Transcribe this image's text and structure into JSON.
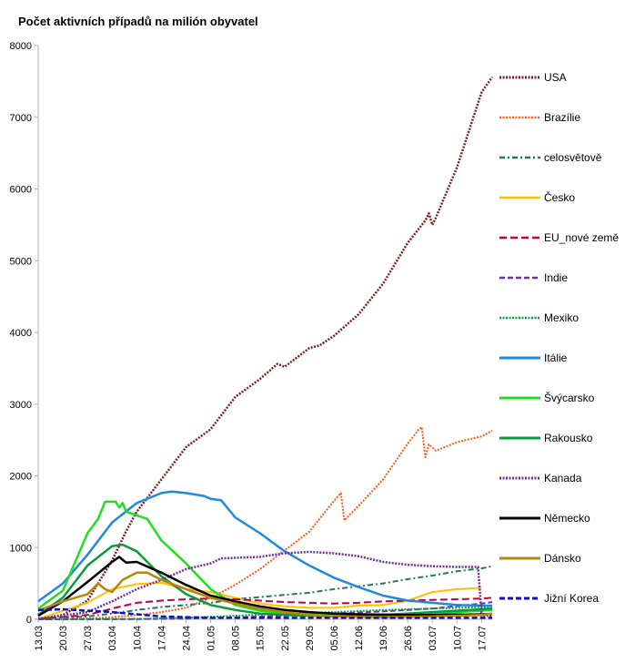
{
  "chart_data": {
    "type": "line",
    "title": "Počet aktivních případů na milión obyvatel",
    "xlabel": "",
    "ylabel": "",
    "ylim": [
      0,
      8000
    ],
    "yticks": [
      0,
      1000,
      2000,
      3000,
      4000,
      5000,
      6000,
      7000,
      8000
    ],
    "x_tick_labels": [
      "13.03",
      "20.03",
      "27.03",
      "03.04",
      "10.04",
      "17.04",
      "24.04",
      "01.05",
      "08.05",
      "15.05",
      "22.05",
      "29.05",
      "05.06",
      "12.06",
      "19.06",
      "26.06",
      "03.07",
      "10.07",
      "17.07"
    ],
    "x_tick_days": [
      0,
      7,
      14,
      21,
      28,
      35,
      42,
      49,
      56,
      63,
      70,
      77,
      84,
      91,
      98,
      105,
      112,
      119,
      126
    ],
    "x_range_days": [
      0,
      129
    ],
    "grid": false,
    "legend_position": "right",
    "series": [
      {
        "name": "USA",
        "color": "#7b1f1f",
        "dash": "2,1.5",
        "width": 2.5,
        "points": [
          [
            0,
            5
          ],
          [
            7,
            60
          ],
          [
            14,
            260
          ],
          [
            21,
            820
          ],
          [
            25,
            1230
          ],
          [
            28,
            1500
          ],
          [
            35,
            1950
          ],
          [
            42,
            2400
          ],
          [
            49,
            2650
          ],
          [
            56,
            3100
          ],
          [
            63,
            3350
          ],
          [
            68,
            3560
          ],
          [
            70,
            3520
          ],
          [
            77,
            3780
          ],
          [
            80,
            3820
          ],
          [
            84,
            3950
          ],
          [
            91,
            4250
          ],
          [
            98,
            4680
          ],
          [
            105,
            5250
          ],
          [
            110,
            5560
          ],
          [
            111,
            5660
          ],
          [
            112,
            5500
          ],
          [
            113,
            5600
          ],
          [
            119,
            6300
          ],
          [
            126,
            7350
          ],
          [
            129,
            7560
          ]
        ]
      },
      {
        "name": "Brazílie",
        "color": "#ff5a1a",
        "dash": "2,1.5",
        "width": 2,
        "points": [
          [
            0,
            0
          ],
          [
            14,
            10
          ],
          [
            21,
            30
          ],
          [
            28,
            60
          ],
          [
            35,
            100
          ],
          [
            42,
            160
          ],
          [
            49,
            300
          ],
          [
            56,
            480
          ],
          [
            63,
            700
          ],
          [
            70,
            960
          ],
          [
            77,
            1220
          ],
          [
            84,
            1650
          ],
          [
            86,
            1760
          ],
          [
            87,
            1380
          ],
          [
            91,
            1580
          ],
          [
            98,
            1950
          ],
          [
            105,
            2450
          ],
          [
            108,
            2640
          ],
          [
            109,
            2680
          ],
          [
            110,
            2260
          ],
          [
            111,
            2440
          ],
          [
            113,
            2350
          ],
          [
            119,
            2470
          ],
          [
            126,
            2550
          ],
          [
            129,
            2630
          ]
        ]
      },
      {
        "name": "celosvětově",
        "color": "#1f7a5a",
        "dash": "6,3,2,3",
        "width": 2,
        "points": [
          [
            0,
            15
          ],
          [
            14,
            40
          ],
          [
            21,
            80
          ],
          [
            28,
            130
          ],
          [
            35,
            170
          ],
          [
            42,
            200
          ],
          [
            49,
            230
          ],
          [
            56,
            280
          ],
          [
            63,
            310
          ],
          [
            70,
            340
          ],
          [
            77,
            370
          ],
          [
            84,
            420
          ],
          [
            91,
            460
          ],
          [
            98,
            500
          ],
          [
            105,
            560
          ],
          [
            112,
            610
          ],
          [
            119,
            670
          ],
          [
            126,
            710
          ],
          [
            129,
            740
          ]
        ]
      },
      {
        "name": "Česko",
        "color": "#ffc000",
        "dash": "",
        "width": 2,
        "points": [
          [
            0,
            5
          ],
          [
            14,
            230
          ],
          [
            21,
            420
          ],
          [
            28,
            490
          ],
          [
            35,
            510
          ],
          [
            42,
            420
          ],
          [
            49,
            380
          ],
          [
            56,
            300
          ],
          [
            63,
            220
          ],
          [
            70,
            180
          ],
          [
            77,
            160
          ],
          [
            84,
            160
          ],
          [
            91,
            190
          ],
          [
            98,
            200
          ],
          [
            105,
            260
          ],
          [
            112,
            380
          ],
          [
            119,
            420
          ],
          [
            126,
            440
          ]
        ]
      },
      {
        "name": "EU_nové země",
        "color": "#c00040",
        "dash": "8,4",
        "width": 2,
        "points": [
          [
            0,
            5
          ],
          [
            14,
            60
          ],
          [
            21,
            150
          ],
          [
            28,
            230
          ],
          [
            35,
            260
          ],
          [
            42,
            280
          ],
          [
            49,
            290
          ],
          [
            56,
            280
          ],
          [
            63,
            260
          ],
          [
            70,
            240
          ],
          [
            77,
            230
          ],
          [
            84,
            220
          ],
          [
            91,
            230
          ],
          [
            98,
            250
          ],
          [
            105,
            260
          ],
          [
            112,
            270
          ],
          [
            119,
            280
          ],
          [
            126,
            290
          ],
          [
            129,
            300
          ]
        ]
      },
      {
        "name": "Indie",
        "color": "#7030a0",
        "dash": "6,3",
        "width": 2,
        "points": [
          [
            0,
            0
          ],
          [
            28,
            2
          ],
          [
            42,
            10
          ],
          [
            56,
            25
          ],
          [
            70,
            50
          ],
          [
            84,
            80
          ],
          [
            98,
            110
          ],
          [
            112,
            150
          ],
          [
            126,
            220
          ],
          [
            129,
            240
          ]
        ]
      },
      {
        "name": "Mexiko",
        "color": "#00a040",
        "dash": "2,1.5",
        "width": 2,
        "points": [
          [
            0,
            0
          ],
          [
            28,
            5
          ],
          [
            42,
            20
          ],
          [
            56,
            50
          ],
          [
            70,
            80
          ],
          [
            84,
            100
          ],
          [
            98,
            130
          ],
          [
            112,
            150
          ],
          [
            126,
            170
          ],
          [
            129,
            175
          ]
        ]
      },
      {
        "name": "Itálie",
        "color": "#1e88e5",
        "dash": "",
        "width": 2.5,
        "points": [
          [
            0,
            250
          ],
          [
            7,
            500
          ],
          [
            14,
            900
          ],
          [
            21,
            1350
          ],
          [
            28,
            1620
          ],
          [
            35,
            1760
          ],
          [
            38,
            1780
          ],
          [
            42,
            1760
          ],
          [
            47,
            1720
          ],
          [
            49,
            1680
          ],
          [
            52,
            1660
          ],
          [
            56,
            1420
          ],
          [
            63,
            1200
          ],
          [
            70,
            950
          ],
          [
            77,
            750
          ],
          [
            84,
            580
          ],
          [
            91,
            450
          ],
          [
            98,
            330
          ],
          [
            105,
            260
          ],
          [
            112,
            230
          ],
          [
            119,
            200
          ],
          [
            126,
            190
          ],
          [
            129,
            190
          ]
        ]
      },
      {
        "name": "Švýcarsko",
        "color": "#22dd22",
        "dash": "",
        "width": 2.5,
        "points": [
          [
            0,
            150
          ],
          [
            7,
            400
          ],
          [
            14,
            1200
          ],
          [
            17,
            1400
          ],
          [
            19,
            1640
          ],
          [
            22,
            1640
          ],
          [
            23,
            1560
          ],
          [
            24,
            1620
          ],
          [
            25,
            1500
          ],
          [
            28,
            1450
          ],
          [
            31,
            1400
          ],
          [
            35,
            1100
          ],
          [
            42,
            780
          ],
          [
            49,
            420
          ],
          [
            56,
            200
          ],
          [
            63,
            120
          ],
          [
            70,
            80
          ],
          [
            77,
            70
          ],
          [
            84,
            60
          ],
          [
            98,
            60
          ],
          [
            112,
            80
          ],
          [
            126,
            120
          ],
          [
            129,
            130
          ]
        ]
      },
      {
        "name": "Rakousko",
        "color": "#0a9a3a",
        "dash": "",
        "width": 2.5,
        "points": [
          [
            0,
            60
          ],
          [
            7,
            300
          ],
          [
            14,
            750
          ],
          [
            21,
            1020
          ],
          [
            24,
            1040
          ],
          [
            28,
            950
          ],
          [
            35,
            600
          ],
          [
            42,
            350
          ],
          [
            49,
            200
          ],
          [
            56,
            130
          ],
          [
            63,
            80
          ],
          [
            70,
            60
          ],
          [
            84,
            40
          ],
          [
            98,
            60
          ],
          [
            112,
            100
          ],
          [
            126,
            140
          ],
          [
            129,
            150
          ]
        ]
      },
      {
        "name": "Kanada",
        "color": "#7030a0",
        "dash": "2,1.5",
        "width": 2.5,
        "points": [
          [
            0,
            5
          ],
          [
            14,
            100
          ],
          [
            21,
            250
          ],
          [
            28,
            420
          ],
          [
            35,
            550
          ],
          [
            42,
            700
          ],
          [
            49,
            780
          ],
          [
            52,
            850
          ],
          [
            63,
            870
          ],
          [
            70,
            920
          ],
          [
            77,
            940
          ],
          [
            84,
            920
          ],
          [
            91,
            880
          ],
          [
            98,
            800
          ],
          [
            105,
            760
          ],
          [
            112,
            740
          ],
          [
            119,
            730
          ],
          [
            125,
            730
          ],
          [
            126,
            50
          ],
          [
            129,
            50
          ]
        ]
      },
      {
        "name": "Německo",
        "color": "#000000",
        "dash": "",
        "width": 2.5,
        "points": [
          [
            0,
            50
          ],
          [
            7,
            250
          ],
          [
            14,
            520
          ],
          [
            21,
            800
          ],
          [
            23,
            870
          ],
          [
            25,
            790
          ],
          [
            28,
            800
          ],
          [
            35,
            650
          ],
          [
            42,
            480
          ],
          [
            49,
            330
          ],
          [
            56,
            250
          ],
          [
            63,
            180
          ],
          [
            70,
            130
          ],
          [
            77,
            100
          ],
          [
            84,
            80
          ],
          [
            91,
            70
          ],
          [
            105,
            60
          ],
          [
            112,
            60
          ],
          [
            126,
            70
          ],
          [
            129,
            75
          ]
        ]
      },
      {
        "name": "Dánsko",
        "color": "#b8860b",
        "dash": "",
        "width": 2.5,
        "points": [
          [
            0,
            120
          ],
          [
            7,
            250
          ],
          [
            14,
            350
          ],
          [
            17,
            500
          ],
          [
            19,
            420
          ],
          [
            21,
            380
          ],
          [
            24,
            550
          ],
          [
            28,
            650
          ],
          [
            31,
            650
          ],
          [
            35,
            550
          ],
          [
            42,
            420
          ],
          [
            49,
            300
          ],
          [
            56,
            220
          ],
          [
            63,
            150
          ],
          [
            70,
            100
          ],
          [
            77,
            60
          ],
          [
            84,
            40
          ],
          [
            98,
            30
          ],
          [
            112,
            40
          ],
          [
            126,
            60
          ],
          [
            129,
            80
          ]
        ]
      },
      {
        "name": "Jižní Korea",
        "color": "#1010cc",
        "dash": "6,3",
        "width": 2.5,
        "points": [
          [
            0,
            130
          ],
          [
            7,
            140
          ],
          [
            14,
            120
          ],
          [
            21,
            100
          ],
          [
            28,
            70
          ],
          [
            35,
            40
          ],
          [
            42,
            30
          ],
          [
            49,
            20
          ],
          [
            56,
            20
          ],
          [
            63,
            20
          ],
          [
            77,
            20
          ],
          [
            91,
            20
          ],
          [
            105,
            20
          ],
          [
            119,
            20
          ],
          [
            129,
            20
          ]
        ]
      }
    ]
  }
}
